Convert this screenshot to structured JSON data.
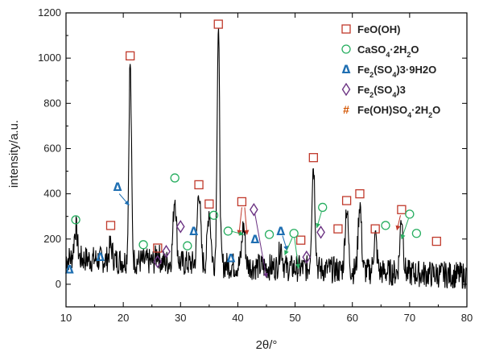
{
  "chart_data": {
    "type": "line",
    "title": "",
    "xlabel": "2θ/°",
    "ylabel": "intensity/a.u.",
    "xlim": [
      10,
      80
    ],
    "ylim": [
      -100,
      1200
    ],
    "x_ticks": [
      10,
      20,
      30,
      40,
      50,
      60,
      70,
      80
    ],
    "y_ticks": [
      0,
      200,
      400,
      600,
      800,
      1000,
      1200
    ],
    "grid": false,
    "legend_position": "top-right",
    "colors": {
      "line": "#000000",
      "feooh": "#c0392b",
      "caso4": "#27ae60",
      "fe2so43_9h2o": "#1f6fb2",
      "fe2so43": "#6c3483",
      "feohso4": "#d35400"
    },
    "legend": [
      {
        "key": "feooh",
        "marker": "square-icon",
        "prefix": "FeO(OH)",
        "sub1": "",
        "mid": "",
        "sub2": "",
        "tail": ""
      },
      {
        "key": "caso4",
        "marker": "circle-icon",
        "prefix": "CaSO",
        "sub1": "4",
        "mid": "·2H",
        "sub2": "2",
        "tail": "O"
      },
      {
        "key": "fe2so43_9h2o",
        "marker": "triangle-icon",
        "prefix": "Fe",
        "sub1": "2",
        "mid": "(SO",
        "sub2": "4",
        "tail": ")3·9H2O"
      },
      {
        "key": "fe2so43",
        "marker": "diamond-icon",
        "prefix": "Fe",
        "sub1": "2",
        "mid": "(SO",
        "sub2": "4",
        "tail": ")3"
      },
      {
        "key": "feohso4",
        "marker": "hash-icon",
        "prefix": "Fe(OH)SO",
        "sub1": "4",
        "mid": "·2H",
        "sub2": "2",
        "tail": "O"
      }
    ],
    "peaks": [
      {
        "x": 11.7,
        "y": 250
      },
      {
        "x": 17.8,
        "y": 170
      },
      {
        "x": 21.2,
        "y": 980
      },
      {
        "x": 26.0,
        "y": 140
      },
      {
        "x": 29.0,
        "y": 390
      },
      {
        "x": 33.2,
        "y": 420
      },
      {
        "x": 35.0,
        "y": 330
      },
      {
        "x": 36.6,
        "y": 1130
      },
      {
        "x": 41.0,
        "y": 260
      },
      {
        "x": 47.5,
        "y": 170
      },
      {
        "x": 53.2,
        "y": 530
      },
      {
        "x": 59.0,
        "y": 340
      },
      {
        "x": 61.3,
        "y": 360
      },
      {
        "x": 64.0,
        "y": 210
      },
      {
        "x": 68.6,
        "y": 300
      }
    ],
    "markers": [
      {
        "phase": "feooh",
        "x": 17.8,
        "y": 260
      },
      {
        "phase": "feooh",
        "x": 21.2,
        "y": 1010
      },
      {
        "phase": "feooh",
        "x": 26.0,
        "y": 160
      },
      {
        "phase": "feooh",
        "x": 33.2,
        "y": 440
      },
      {
        "phase": "feooh",
        "x": 35.0,
        "y": 355
      },
      {
        "phase": "feooh",
        "x": 36.6,
        "y": 1150
      },
      {
        "phase": "feooh",
        "x": 40.7,
        "y": 365
      },
      {
        "phase": "feooh",
        "x": 51.0,
        "y": 195
      },
      {
        "phase": "feooh",
        "x": 53.2,
        "y": 560
      },
      {
        "phase": "feooh",
        "x": 57.5,
        "y": 245
      },
      {
        "phase": "feooh",
        "x": 59.0,
        "y": 370
      },
      {
        "phase": "feooh",
        "x": 61.3,
        "y": 400
      },
      {
        "phase": "feooh",
        "x": 64.0,
        "y": 245
      },
      {
        "phase": "feooh",
        "x": 68.6,
        "y": 330
      },
      {
        "phase": "feooh",
        "x": 74.7,
        "y": 190
      },
      {
        "phase": "caso4",
        "x": 11.7,
        "y": 285
      },
      {
        "phase": "caso4",
        "x": 23.5,
        "y": 175
      },
      {
        "phase": "caso4",
        "x": 29.0,
        "y": 470
      },
      {
        "phase": "caso4",
        "x": 31.2,
        "y": 170
      },
      {
        "phase": "caso4",
        "x": 35.8,
        "y": 305
      },
      {
        "phase": "caso4",
        "x": 38.3,
        "y": 235
      },
      {
        "phase": "caso4",
        "x": 45.5,
        "y": 220
      },
      {
        "phase": "caso4",
        "x": 49.8,
        "y": 225
      },
      {
        "phase": "caso4",
        "x": 54.8,
        "y": 340
      },
      {
        "phase": "caso4",
        "x": 65.8,
        "y": 260
      },
      {
        "phase": "caso4",
        "x": 70.0,
        "y": 310
      },
      {
        "phase": "caso4",
        "x": 71.2,
        "y": 225
      },
      {
        "phase": "fe2so43_9h2o",
        "x": 10.6,
        "y": 65
      },
      {
        "phase": "fe2so43_9h2o",
        "x": 16.0,
        "y": 120
      },
      {
        "phase": "fe2so43_9h2o",
        "x": 19.0,
        "y": 430
      },
      {
        "phase": "fe2so43_9h2o",
        "x": 32.3,
        "y": 235
      },
      {
        "phase": "fe2so43_9h2o",
        "x": 38.8,
        "y": 115
      },
      {
        "phase": "fe2so43_9h2o",
        "x": 43.0,
        "y": 200
      },
      {
        "phase": "fe2so43_9h2o",
        "x": 47.5,
        "y": 235
      },
      {
        "phase": "fe2so43",
        "x": 26.0,
        "y": 100
      },
      {
        "phase": "fe2so43",
        "x": 27.5,
        "y": 145
      },
      {
        "phase": "fe2so43",
        "x": 30.0,
        "y": 255
      },
      {
        "phase": "fe2so43",
        "x": 42.8,
        "y": 330
      },
      {
        "phase": "fe2so43",
        "x": 52.0,
        "y": 120
      },
      {
        "phase": "fe2so43",
        "x": 54.5,
        "y": 230
      }
    ],
    "arrows": [
      {
        "phase": "fe2so43_9h2o",
        "from": [
          19.3,
          400
        ],
        "to": [
          21.0,
          350
        ]
      },
      {
        "phase": "feooh",
        "from": [
          40.7,
          340
        ],
        "to": [
          40.2,
          220
        ]
      },
      {
        "phase": "feooh",
        "from": [
          41.2,
          340
        ],
        "to": [
          41.6,
          220
        ]
      },
      {
        "phase": "caso4",
        "from": [
          38.8,
          235
        ],
        "to": [
          41.0,
          220
        ]
      },
      {
        "phase": "fe2so43",
        "from": [
          43.0,
          310
        ],
        "to": [
          45.0,
          30
        ]
      },
      {
        "phase": "fe2so43_9h2o",
        "from": [
          47.8,
          215
        ],
        "to": [
          48.6,
          150
        ]
      },
      {
        "phase": "caso4",
        "from": [
          49.5,
          205
        ],
        "to": [
          48.2,
          130
        ]
      },
      {
        "phase": "caso4",
        "from": [
          49.9,
          205
        ],
        "to": [
          50.6,
          70
        ]
      },
      {
        "phase": "caso4",
        "from": [
          54.6,
          320
        ],
        "to": [
          53.8,
          250
        ]
      },
      {
        "phase": "feooh",
        "from": [
          68.4,
          305
        ],
        "to": [
          67.8,
          240
        ]
      },
      {
        "phase": "caso4",
        "from": [
          69.8,
          290
        ],
        "to": [
          68.6,
          200
        ]
      }
    ]
  }
}
